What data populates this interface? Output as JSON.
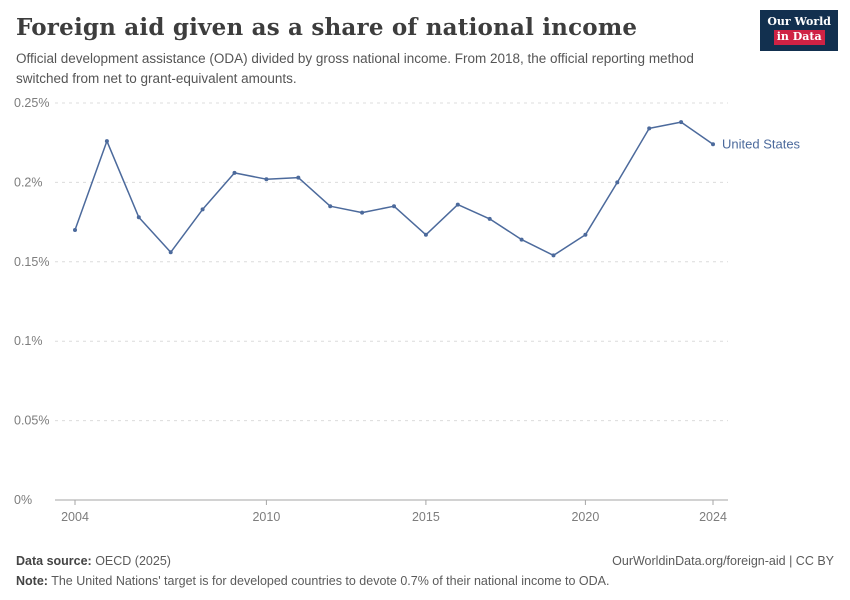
{
  "logo": {
    "line1": "Our World",
    "line2": "in Data"
  },
  "header": {
    "title": "Foreign aid given as a share of national income",
    "subtitle": "Official development assistance (ODA) divided by gross national income. From 2018, the official reporting method switched from net to grant-equivalent amounts."
  },
  "chart_data": {
    "type": "line",
    "title": "Foreign aid given as a share of national income",
    "x": [
      2004,
      2005,
      2006,
      2007,
      2008,
      2009,
      2010,
      2011,
      2012,
      2013,
      2014,
      2015,
      2016,
      2017,
      2018,
      2019,
      2020,
      2021,
      2022,
      2023,
      2024
    ],
    "series": [
      {
        "name": "United States",
        "values": [
          0.17,
          0.226,
          0.178,
          0.156,
          0.183,
          0.206,
          0.202,
          0.203,
          0.185,
          0.181,
          0.185,
          0.167,
          0.186,
          0.177,
          0.164,
          0.154,
          0.167,
          0.2,
          0.234,
          0.238,
          0.224
        ]
      }
    ],
    "ylim": [
      0,
      0.25
    ],
    "yticks": [
      {
        "value": 0,
        "label": "0%"
      },
      {
        "value": 0.05,
        "label": "0.05%"
      },
      {
        "value": 0.1,
        "label": "0.1%"
      },
      {
        "value": 0.15,
        "label": "0.15%"
      },
      {
        "value": 0.2,
        "label": "0.2%"
      },
      {
        "value": 0.25,
        "label": "0.25%"
      }
    ],
    "xticks": [
      2004,
      2010,
      2015,
      2020,
      2024
    ],
    "line_color": "#4c6a9c",
    "grid": "dashed-horizontal",
    "legend_position": "end-of-line"
  },
  "footer": {
    "source_label": "Data source:",
    "source_text": " OECD (2025)",
    "rights": "OurWorldinData.org/foreign-aid | CC BY",
    "note_label": "Note:",
    "note_text": " The United Nations' target is for developed countries to devote 0.7% of their national income to ODA."
  }
}
